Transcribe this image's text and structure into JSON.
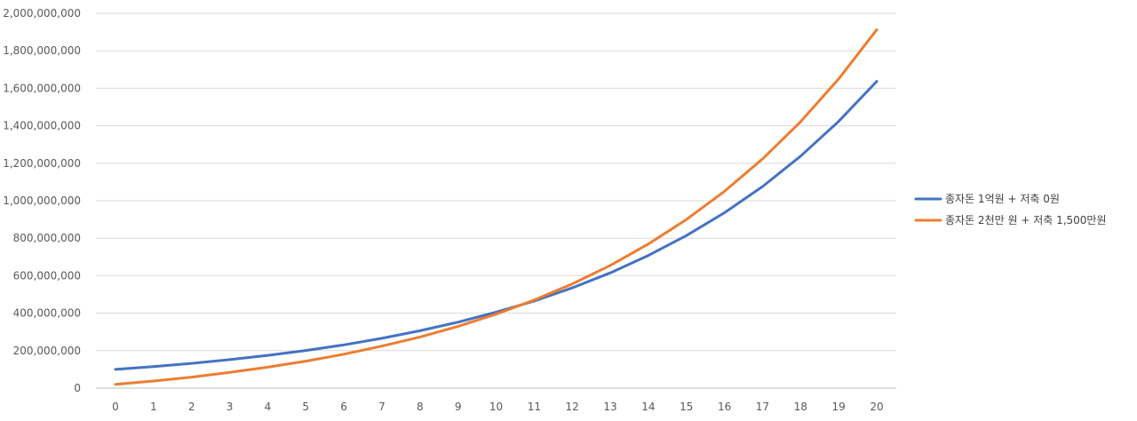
{
  "chart_data": {
    "type": "line",
    "title": "",
    "xlabel": "",
    "ylabel": "",
    "x": [
      0,
      1,
      2,
      3,
      4,
      5,
      6,
      7,
      8,
      9,
      10,
      11,
      12,
      13,
      14,
      15,
      16,
      17,
      18,
      19,
      20
    ],
    "x_tick_labels": [
      "0",
      "1",
      "2",
      "3",
      "4",
      "5",
      "6",
      "7",
      "8",
      "9",
      "10",
      "11",
      "12",
      "13",
      "14",
      "15",
      "16",
      "17",
      "18",
      "19",
      "20"
    ],
    "ylim": [
      0,
      2000000000
    ],
    "y_tick_values": [
      0,
      200000000,
      400000000,
      600000000,
      800000000,
      1000000000,
      1200000000,
      1400000000,
      1600000000,
      1800000000,
      2000000000
    ],
    "y_tick_labels": [
      "0",
      "200,000,000",
      "400,000,000",
      "600,000,000",
      "800,000,000",
      "1,000,000,000",
      "1,200,000,000",
      "1,400,000,000",
      "1,600,000,000",
      "1,800,000,000",
      "2,000,000,000"
    ],
    "grid": true,
    "legend_position": "right",
    "series": [
      {
        "name": "종자돈 1억원 + 저축 0원",
        "color": "#4472C4",
        "values": [
          100000000,
          115000000,
          132000000,
          152000000,
          175000000,
          201000000,
          231000000,
          266000000,
          306000000,
          352000000,
          405000000,
          465000000,
          535000000,
          615000000,
          708000000,
          814000000,
          936000000,
          1076000000,
          1238000000,
          1423000000,
          1637000000
        ]
      },
      {
        "name": "종자돈 2천만 원 + 저축 1,500만원",
        "color": "#ED7D31",
        "values": [
          20000000,
          38000000,
          59000000,
          84000000,
          112000000,
          144000000,
          181000000,
          224000000,
          273000000,
          330000000,
          395000000,
          470000000,
          556000000,
          655000000,
          769000000,
          900000000,
          1050000000,
          1223000000,
          1422000000,
          1650000000,
          1913000000
        ]
      }
    ]
  }
}
